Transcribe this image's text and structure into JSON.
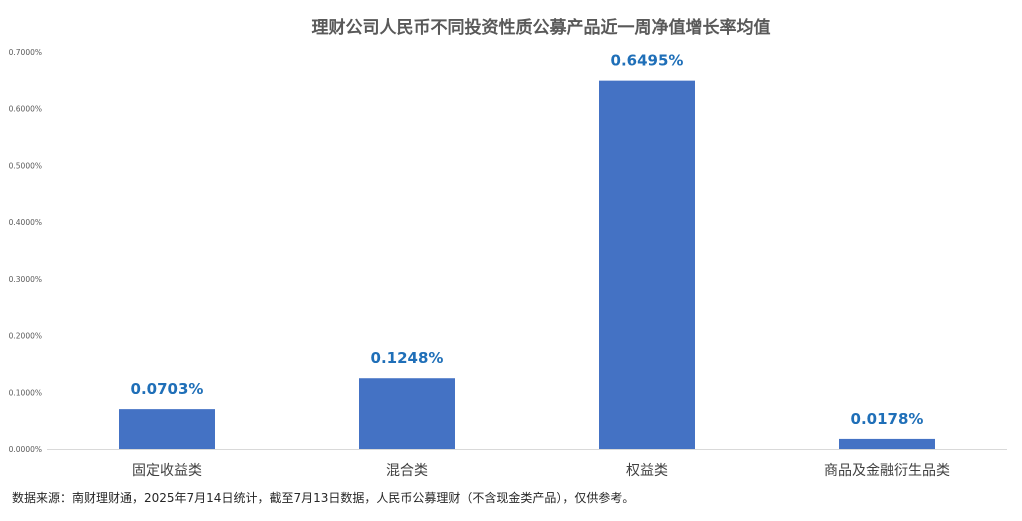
{
  "chart_data": {
    "type": "bar",
    "title": "理财公司人民币不同投资性质公募产品近一周净值增长率均值",
    "categories": [
      "固定收益类",
      "混合类",
      "权益类",
      "商品及金融衍生品类"
    ],
    "values": [
      0.0703,
      0.1248,
      0.6495,
      0.0178
    ],
    "data_labels": [
      "0.0703%",
      "0.1248%",
      "0.6495%",
      "0.0178%"
    ],
    "ylim": [
      0,
      0.7
    ],
    "y_ticks": [
      0,
      0.1,
      0.2,
      0.3,
      0.4,
      0.5,
      0.6,
      0.7
    ],
    "y_tick_labels": [
      "0.0000%",
      "0.1000%",
      "0.2000%",
      "0.3000%",
      "0.4000%",
      "0.5000%",
      "0.6000%",
      "0.7000%"
    ],
    "grid": false,
    "legend": "none",
    "xlabel": "",
    "ylabel": "",
    "source": "数据来源：南财理财通，2025年7月14日统计，截至7月13日数据，人民币公募理财（不含现金类产品），仅供参考。"
  },
  "colors": {
    "bar": "#4472C4",
    "data_label": "#1F6FB8",
    "axis": "#D9D9D9",
    "title": "#595959"
  }
}
